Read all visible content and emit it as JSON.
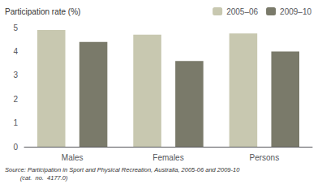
{
  "chart_data": {
    "type": "bar",
    "ylabel": "Participation rate (%)",
    "categories": [
      "Males",
      "Females",
      "Persons"
    ],
    "series": [
      {
        "name": "2005–06",
        "color": "#c8c8b0",
        "values": [
          4.9,
          4.7,
          4.75
        ]
      },
      {
        "name": "2009–10",
        "color": "#7a7a6a",
        "values": [
          4.4,
          3.6,
          4.0
        ]
      }
    ],
    "ylim": [
      0,
      5
    ],
    "yticks": [
      0,
      1,
      2,
      3,
      4,
      5
    ],
    "grid": false,
    "legend": "upper right",
    "annotations": [
      "Source: Participation in Sport and Physical Recreation, Australia, 2005-06 and 2009-10",
      "         (cat.  no.  4177.0)"
    ]
  }
}
